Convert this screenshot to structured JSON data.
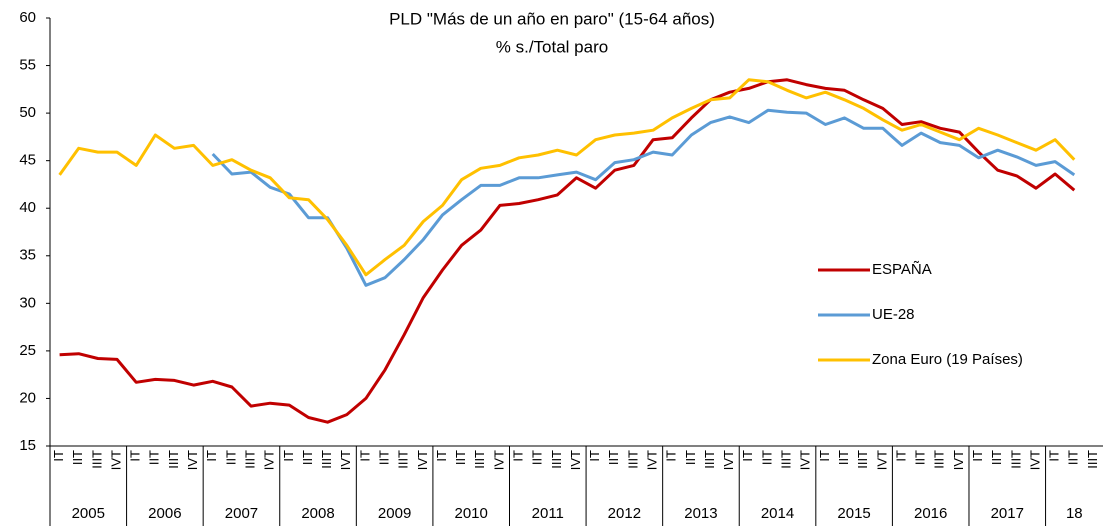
{
  "chart_data": {
    "type": "line",
    "title": [
      "PLD \"Más de un año en paro\" (15-64 años)",
      "% s./Total paro"
    ],
    "categories": [
      "IT",
      "IIT",
      "IIIT",
      "IVT",
      "IT",
      "IIT",
      "IIIT",
      "IVT",
      "IT",
      "IIT",
      "IIIT",
      "IVT",
      "IT",
      "IIT",
      "IIIT",
      "IVT",
      "IT",
      "IIT",
      "IIIT",
      "IVT",
      "IT",
      "IIT",
      "IIIT",
      "IVT",
      "IT",
      "IIT",
      "IIIT",
      "IVT",
      "IT",
      "IIT",
      "IIIT",
      "IVT",
      "IT",
      "IIT",
      "IIIT",
      "IVT",
      "IT",
      "IIT",
      "IIIT",
      "IVT",
      "IT",
      "IIT",
      "IIIT",
      "IVT",
      "IT",
      "IIT",
      "IIIT",
      "IVT",
      "IT",
      "IIT",
      "IIIT",
      "IVT",
      "IT",
      "IIT",
      "IIIT"
    ],
    "groups": [
      "2005",
      "2006",
      "2007",
      "2008",
      "2009",
      "2010",
      "2011",
      "2012",
      "2013",
      "2014",
      "2015",
      "2016",
      "2017",
      "18"
    ],
    "series": [
      {
        "name": "ESPAÑA",
        "color": "#c00000",
        "values": [
          24.6,
          24.7,
          24.2,
          24.1,
          21.7,
          22.0,
          21.9,
          21.4,
          21.8,
          21.2,
          19.2,
          19.5,
          19.3,
          18.0,
          17.5,
          18.3,
          20.0,
          23.0,
          26.7,
          30.6,
          33.5,
          36.1,
          37.7,
          40.3,
          40.5,
          40.9,
          41.4,
          43.2,
          42.1,
          44.0,
          44.5,
          47.2,
          47.4,
          49.5,
          51.4,
          52.2,
          52.6,
          53.3,
          53.5,
          53.0,
          52.6,
          52.4,
          51.4,
          50.5,
          48.8,
          49.1,
          48.4,
          48.0,
          45.9,
          44.0,
          43.4,
          42.1,
          43.6,
          41.9,
          null
        ]
      },
      {
        "name": "UE-28",
        "color": "#5b9bd5",
        "values": [
          null,
          null,
          null,
          null,
          null,
          null,
          null,
          null,
          45.7,
          43.6,
          43.8,
          42.2,
          41.5,
          39.0,
          39.0,
          35.8,
          31.9,
          32.7,
          34.6,
          36.7,
          39.3,
          40.9,
          42.4,
          42.4,
          43.2,
          43.2,
          43.5,
          43.8,
          43.0,
          44.8,
          45.1,
          45.9,
          45.6,
          47.7,
          49.0,
          49.6,
          49.0,
          50.3,
          50.1,
          50.0,
          48.8,
          49.5,
          48.4,
          48.4,
          46.6,
          47.9,
          46.9,
          46.6,
          45.3,
          46.1,
          45.4,
          44.5,
          44.9,
          43.5,
          null
        ]
      },
      {
        "name": "Zona Euro (19 Países)",
        "color": "#ffc000",
        "values": [
          43.5,
          46.3,
          45.9,
          45.9,
          44.5,
          47.7,
          46.3,
          46.6,
          44.5,
          45.1,
          44.0,
          43.2,
          41.1,
          40.9,
          38.8,
          36.1,
          33.0,
          34.6,
          36.1,
          38.6,
          40.3,
          43.0,
          44.2,
          44.5,
          45.3,
          45.6,
          46.1,
          45.6,
          47.2,
          47.7,
          47.9,
          48.2,
          49.5,
          50.5,
          51.4,
          51.6,
          53.5,
          53.3,
          52.4,
          51.6,
          52.2,
          51.4,
          50.5,
          49.3,
          48.2,
          48.8,
          48.0,
          47.2,
          48.4,
          47.7,
          46.9,
          46.1,
          47.2,
          45.1,
          null
        ]
      }
    ],
    "ylim": [
      15,
      60
    ],
    "yticks": [
      15,
      20,
      25,
      30,
      35,
      40,
      45,
      50,
      55,
      60
    ],
    "grid": false,
    "legend": "right"
  }
}
